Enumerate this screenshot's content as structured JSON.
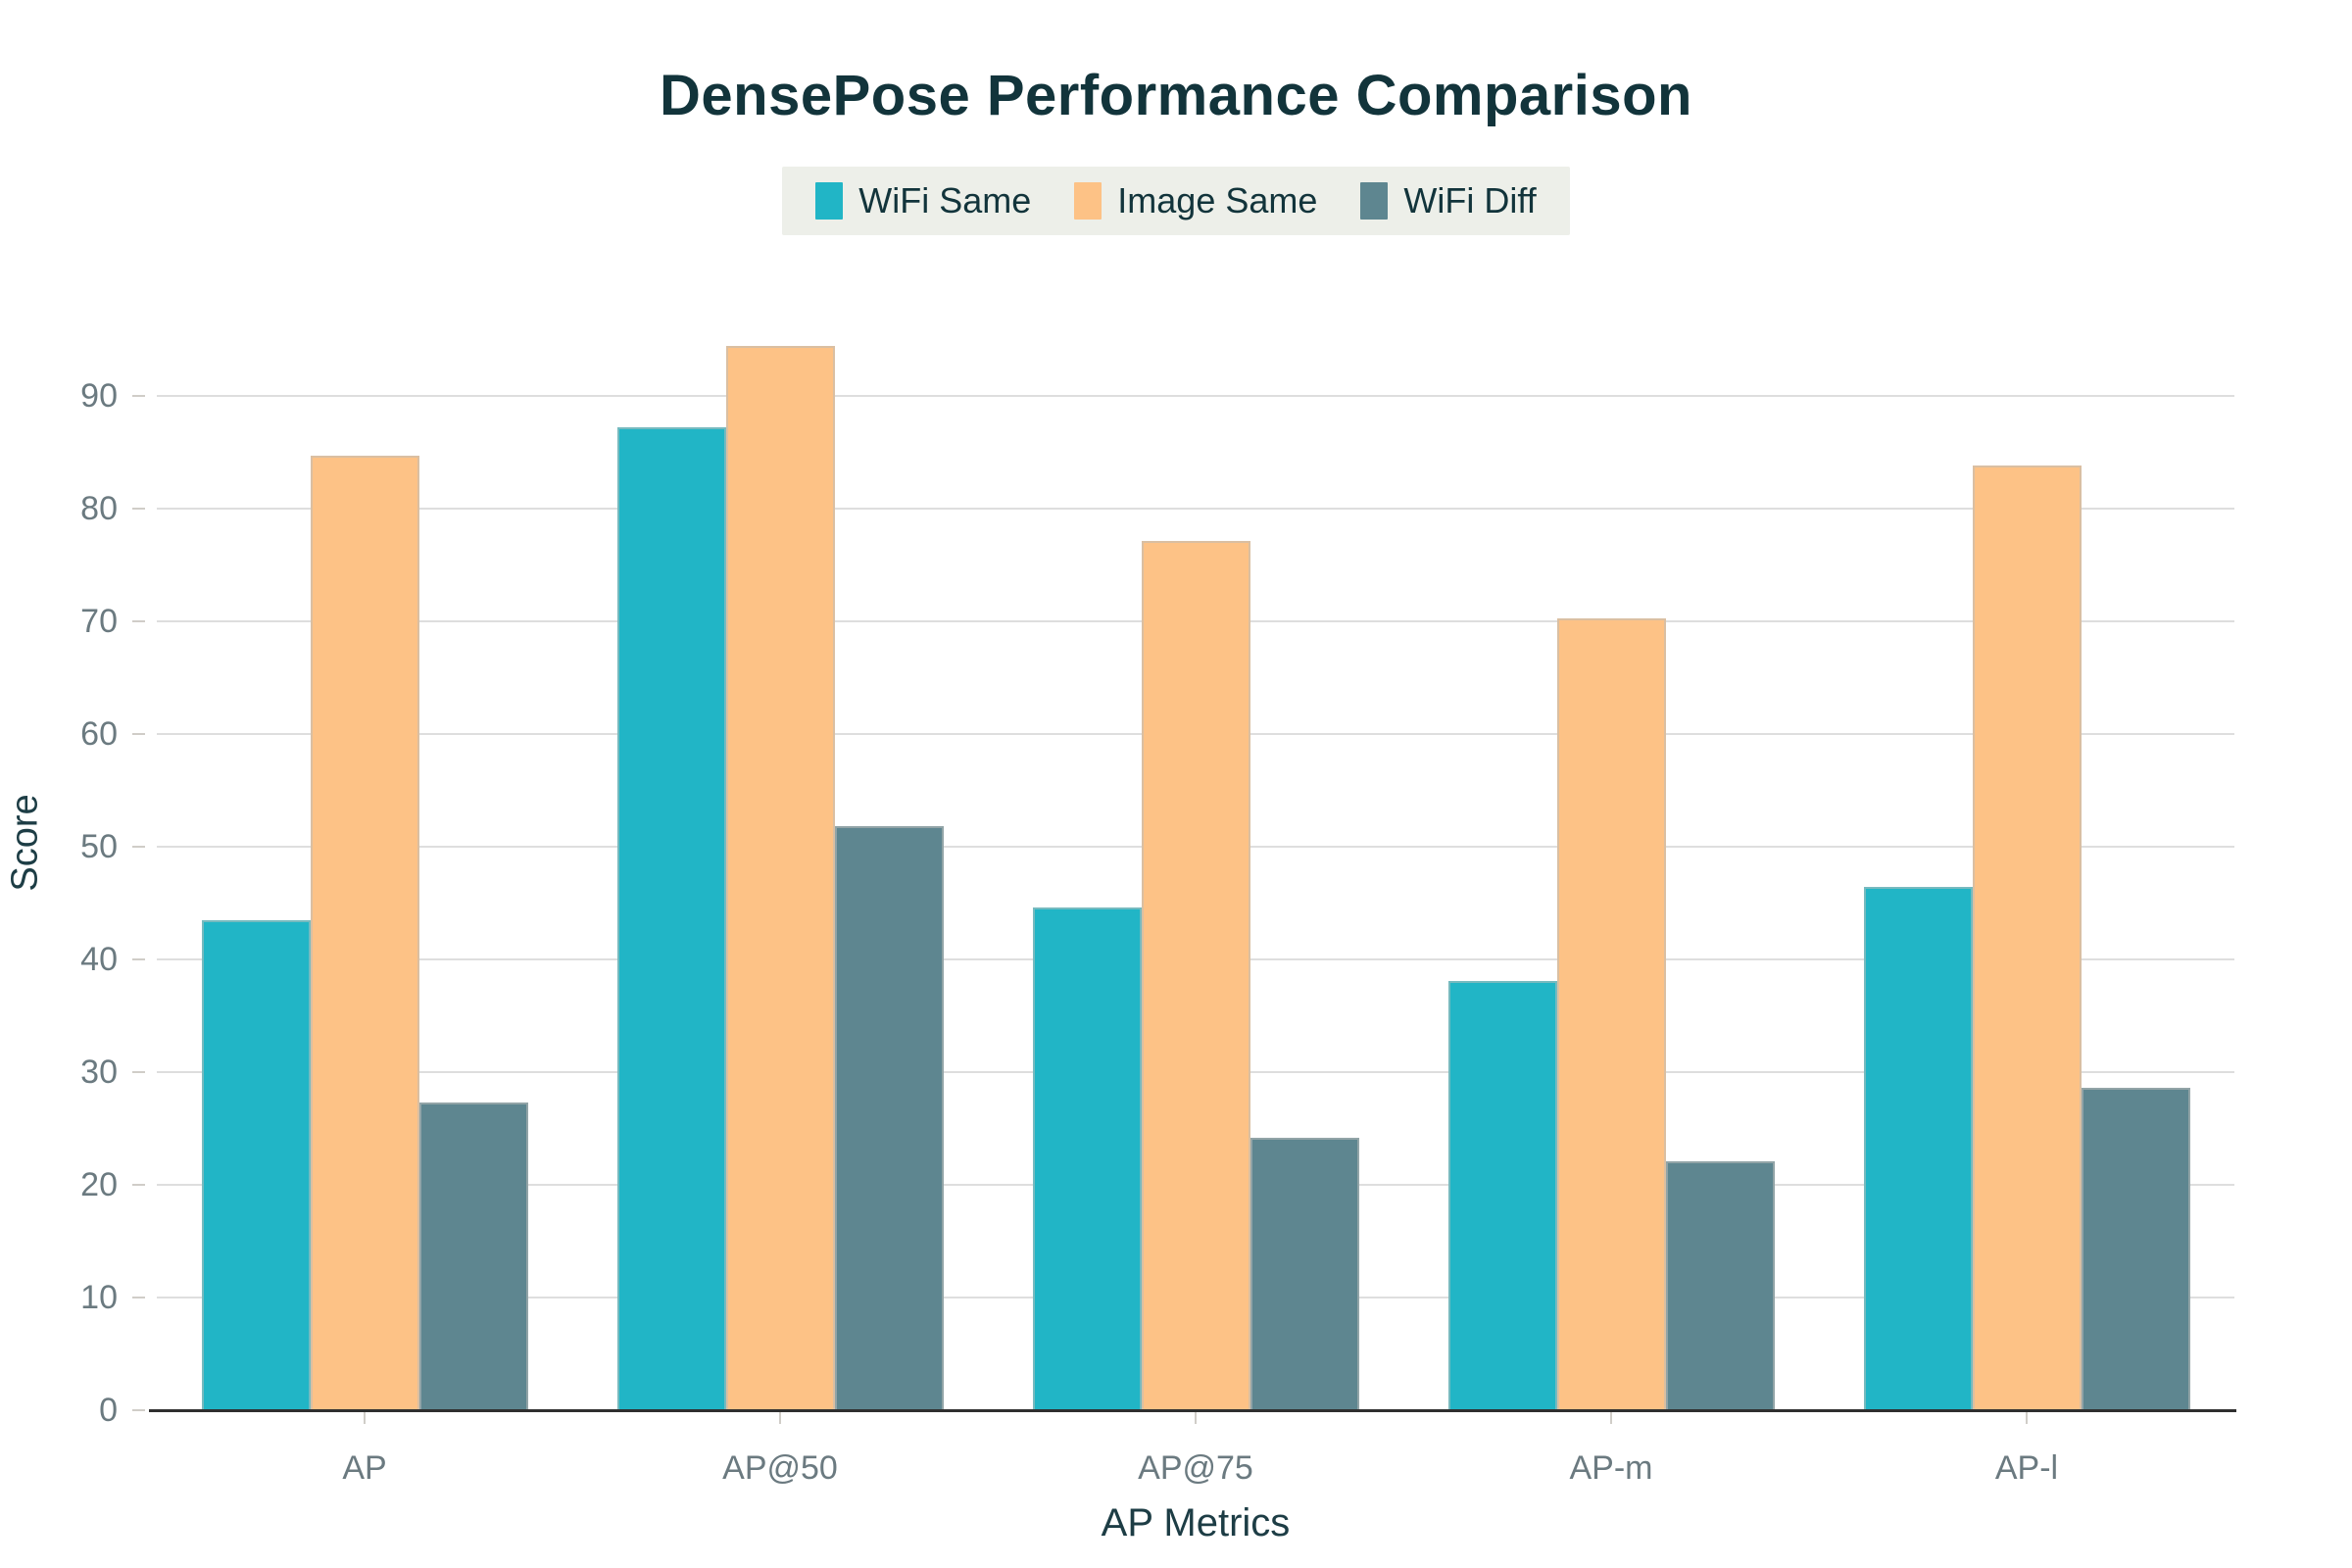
{
  "chart_data": {
    "type": "bar",
    "title": "DensePose Performance Comparison",
    "xlabel": "AP Metrics",
    "ylabel": "Score",
    "categories": [
      "AP",
      "AP@50",
      "AP@75",
      "AP-m",
      "AP-l"
    ],
    "series": [
      {
        "name": "WiFi Same",
        "color": "#21b5c6",
        "values": [
          43.5,
          87.2,
          44.6,
          38.1,
          46.4
        ]
      },
      {
        "name": "Image Same",
        "color": "#fdc286",
        "values": [
          84.7,
          94.4,
          77.1,
          70.3,
          83.8
        ]
      },
      {
        "name": "WiFi Diff",
        "color": "#5e8690",
        "values": [
          27.3,
          51.8,
          24.2,
          22.1,
          28.6
        ]
      }
    ],
    "ylim": [
      0,
      100
    ],
    "yticks": [
      0,
      10,
      20,
      30,
      40,
      50,
      60,
      70,
      80,
      90
    ],
    "grid": true,
    "legend_position": "top"
  },
  "colors": {
    "title_text": "#12343b",
    "axis_title_text": "#1d3d45",
    "tick_text": "#6b7a80",
    "gridline": "#dedede",
    "tick_mark": "#d0cdc8",
    "axis_line": "#2f2f2f",
    "legend_background": "#edefe9",
    "legend_text": "#12343b",
    "background": "#ffffff"
  }
}
